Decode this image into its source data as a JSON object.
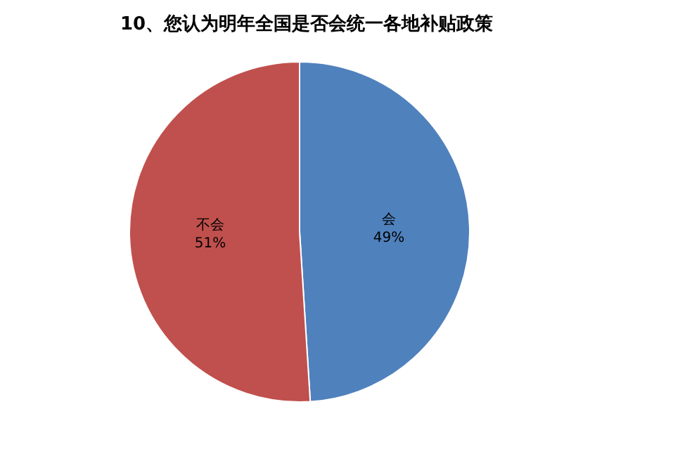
{
  "chart_data": {
    "type": "pie",
    "title": "10、您认为明年全国是否会统一各地补贴政策",
    "categories": [
      "会",
      "不会"
    ],
    "values": [
      49,
      51
    ],
    "colors": [
      "#4f81bd",
      "#c0504d"
    ],
    "value_labels": [
      "49%",
      "51%"
    ],
    "legend": false
  }
}
